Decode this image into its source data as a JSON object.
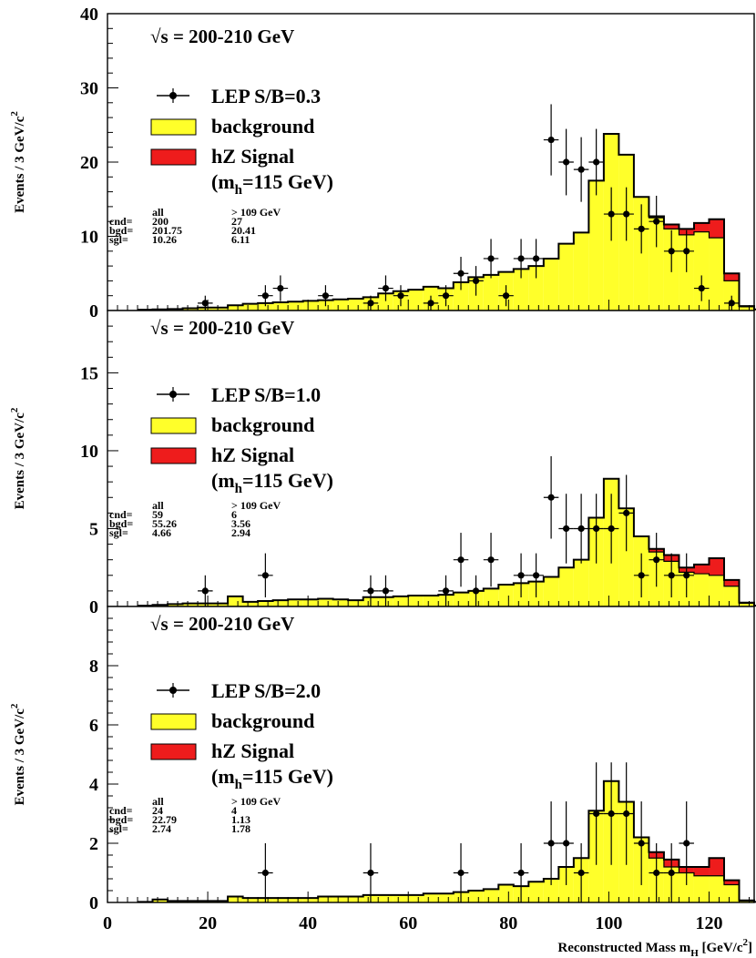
{
  "chart_data": {
    "type": "bar",
    "xlabel": "Reconstructed Mass m",
    "xlabel_sub": "H",
    "xlabel_unit": " [GeV/c",
    "xlabel_sup": "2",
    "xlabel_end": "]",
    "xlim": [
      0,
      129
    ],
    "x_ticks": [
      0,
      20,
      40,
      60,
      80,
      100,
      120
    ],
    "bin_width": 3,
    "bin_start": 6,
    "colors": {
      "background": "#ffff2a",
      "signal": "#ee1c1c",
      "line": "#000000"
    },
    "panels": [
      {
        "ylabel": "Events / 3 GeV/c",
        "ylabel_sup": "2",
        "ylim": [
          0,
          40
        ],
        "y_ticks": [
          0,
          10,
          20,
          30,
          40
        ],
        "energy": "= 200-210 GeV",
        "energy_sqrt": "√s",
        "legend": {
          "data": "LEP S/B=0.3",
          "background": "background",
          "signal": "hZ Signal",
          "mass_pre": "(m",
          "mass_sub": "h",
          "mass_post": "=115 GeV)"
        },
        "stats": {
          "head": [
            "all",
            "> 109 GeV"
          ],
          "rows": [
            [
              "cnd=",
              "200",
              "27"
            ],
            [
              "bgd=",
              "201.75",
              "20.41"
            ],
            [
              "sgl=",
              "10.26",
              "6.11"
            ]
          ]
        },
        "background": [
          0.1,
          0.15,
          0.2,
          0.3,
          0.4,
          0.4,
          0.7,
          0.9,
          1.0,
          1.1,
          1.2,
          1.3,
          1.4,
          1.5,
          1.6,
          1.8,
          2.3,
          2.6,
          2.8,
          3.2,
          3.0,
          3.8,
          4.5,
          4.8,
          5.2,
          5.6,
          6.0,
          7.0,
          9.0,
          10.5,
          17.5,
          23.8,
          21.0,
          15.3,
          12.5,
          11.0,
          10.2,
          10.6,
          9.8,
          4.0,
          0.5,
          0.15,
          0.1,
          0.1
        ],
        "signal": [
          0,
          0,
          0,
          0,
          0,
          0,
          0,
          0,
          0,
          0,
          0,
          0,
          0,
          0,
          0,
          0,
          0,
          0,
          0,
          0,
          0,
          0,
          0,
          0,
          0,
          0,
          0,
          0,
          0,
          0,
          0,
          0,
          0,
          0,
          0.2,
          0.6,
          0.8,
          1.2,
          2.5,
          1.0,
          0.1,
          0,
          0,
          0
        ],
        "points": [
          {
            "x": 19.5,
            "y": 1
          },
          {
            "x": 31.5,
            "y": 2
          },
          {
            "x": 34.5,
            "y": 3
          },
          {
            "x": 43.5,
            "y": 2
          },
          {
            "x": 52.5,
            "y": 1
          },
          {
            "x": 55.5,
            "y": 3
          },
          {
            "x": 58.5,
            "y": 2
          },
          {
            "x": 64.5,
            "y": 1
          },
          {
            "x": 67.5,
            "y": 2
          },
          {
            "x": 70.5,
            "y": 5
          },
          {
            "x": 73.5,
            "y": 4
          },
          {
            "x": 76.5,
            "y": 7
          },
          {
            "x": 79.5,
            "y": 2
          },
          {
            "x": 82.5,
            "y": 7
          },
          {
            "x": 85.5,
            "y": 7
          },
          {
            "x": 88.5,
            "y": 23
          },
          {
            "x": 91.5,
            "y": 20
          },
          {
            "x": 94.5,
            "y": 19
          },
          {
            "x": 97.5,
            "y": 20
          },
          {
            "x": 100.5,
            "y": 13
          },
          {
            "x": 103.5,
            "y": 13
          },
          {
            "x": 106.5,
            "y": 11
          },
          {
            "x": 109.5,
            "y": 12
          },
          {
            "x": 112.5,
            "y": 8
          },
          {
            "x": 115.5,
            "y": 8
          },
          {
            "x": 118.5,
            "y": 3
          },
          {
            "x": 124.5,
            "y": 1
          }
        ]
      },
      {
        "ylabel": "Events / 3 GeV/c",
        "ylabel_sup": "2",
        "ylim": [
          0,
          19
        ],
        "y_ticks": [
          0,
          5,
          10,
          15
        ],
        "energy": "= 200-210 GeV",
        "energy_sqrt": "√s",
        "legend": {
          "data": "LEP S/B=1.0",
          "background": "background",
          "signal": "hZ Signal",
          "mass_pre": "(m",
          "mass_sub": "h",
          "mass_post": "=115 GeV)"
        },
        "stats": {
          "head": [
            "all",
            "> 109 GeV"
          ],
          "rows": [
            [
              "cnd=",
              "59",
              "6"
            ],
            [
              "bgd=",
              "55.26",
              "3.56"
            ],
            [
              "sgl=",
              "4.66",
              "2.94"
            ]
          ]
        },
        "background": [
          0.05,
          0.1,
          0.15,
          0.2,
          0.2,
          0.2,
          0.65,
          0.3,
          0.35,
          0.4,
          0.45,
          0.45,
          0.5,
          0.45,
          0.4,
          0.6,
          0.6,
          0.65,
          0.7,
          0.7,
          0.75,
          0.9,
          1.0,
          1.15,
          1.4,
          1.5,
          1.6,
          1.9,
          2.5,
          3.0,
          5.7,
          8.2,
          6.3,
          4.5,
          3.5,
          2.9,
          2.2,
          2.1,
          2.0,
          1.3,
          0.2,
          0.05,
          0.05,
          0.05
        ],
        "signal": [
          0,
          0,
          0,
          0,
          0,
          0,
          0,
          0,
          0,
          0,
          0,
          0,
          0,
          0,
          0,
          0,
          0,
          0,
          0,
          0,
          0,
          0,
          0,
          0,
          0,
          0,
          0,
          0,
          0,
          0,
          0,
          0,
          0,
          0,
          0.2,
          0.4,
          0.3,
          0.6,
          1.1,
          0.4,
          0.05,
          0,
          0,
          0
        ],
        "points": [
          {
            "x": 19.5,
            "y": 1
          },
          {
            "x": 31.5,
            "y": 2
          },
          {
            "x": 52.5,
            "y": 1
          },
          {
            "x": 55.5,
            "y": 1
          },
          {
            "x": 67.5,
            "y": 1
          },
          {
            "x": 70.5,
            "y": 3
          },
          {
            "x": 73.5,
            "y": 1
          },
          {
            "x": 76.5,
            "y": 3
          },
          {
            "x": 82.5,
            "y": 2
          },
          {
            "x": 85.5,
            "y": 2
          },
          {
            "x": 88.5,
            "y": 7
          },
          {
            "x": 91.5,
            "y": 5
          },
          {
            "x": 94.5,
            "y": 5
          },
          {
            "x": 97.5,
            "y": 5
          },
          {
            "x": 100.5,
            "y": 5
          },
          {
            "x": 103.5,
            "y": 6
          },
          {
            "x": 106.5,
            "y": 2
          },
          {
            "x": 109.5,
            "y": 3
          },
          {
            "x": 112.5,
            "y": 2
          },
          {
            "x": 115.5,
            "y": 2
          }
        ]
      },
      {
        "ylabel": "Events / 3 GeV/c",
        "ylabel_sup": "2",
        "ylim": [
          0,
          10
        ],
        "y_ticks": [
          0,
          2,
          4,
          6,
          8
        ],
        "energy": "= 200-210 GeV",
        "energy_sqrt": "√s",
        "legend": {
          "data": "LEP S/B=2.0",
          "background": "background",
          "signal": "hZ Signal",
          "mass_pre": "(m",
          "mass_sub": "h",
          "mass_post": "=115 GeV)"
        },
        "stats": {
          "head": [
            "all",
            "> 109 GeV"
          ],
          "rows": [
            [
              "cnd=",
              "24",
              "4"
            ],
            [
              "bgd=",
              "22.79",
              "1.13"
            ],
            [
              "sgl=",
              "2.74",
              "1.78"
            ]
          ]
        },
        "background": [
          0.02,
          0.1,
          0.05,
          0.05,
          0.05,
          0.05,
          0.2,
          0.15,
          0.15,
          0.15,
          0.15,
          0.15,
          0.2,
          0.2,
          0.2,
          0.25,
          0.25,
          0.25,
          0.25,
          0.3,
          0.3,
          0.35,
          0.4,
          0.45,
          0.6,
          0.55,
          0.7,
          0.8,
          1.2,
          1.5,
          3.1,
          4.1,
          3.4,
          2.2,
          1.5,
          1.2,
          1.0,
          0.9,
          0.9,
          0.6,
          0.05,
          0.02,
          0.02,
          0.02
        ],
        "signal": [
          0,
          0,
          0,
          0,
          0,
          0,
          0,
          0,
          0,
          0,
          0,
          0,
          0,
          0,
          0,
          0,
          0,
          0,
          0,
          0,
          0,
          0,
          0,
          0,
          0,
          0,
          0,
          0,
          0,
          0,
          0,
          0,
          0,
          0,
          0.2,
          0.25,
          0.2,
          0.3,
          0.6,
          0.15,
          0.02,
          0,
          0,
          0
        ],
        "points": [
          {
            "x": 31.5,
            "y": 1
          },
          {
            "x": 52.5,
            "y": 1
          },
          {
            "x": 70.5,
            "y": 1
          },
          {
            "x": 82.5,
            "y": 1
          },
          {
            "x": 88.5,
            "y": 2
          },
          {
            "x": 91.5,
            "y": 2
          },
          {
            "x": 94.5,
            "y": 1
          },
          {
            "x": 97.5,
            "y": 3
          },
          {
            "x": 100.5,
            "y": 3
          },
          {
            "x": 103.5,
            "y": 3
          },
          {
            "x": 106.5,
            "y": 2
          },
          {
            "x": 109.5,
            "y": 1
          },
          {
            "x": 112.5,
            "y": 1
          },
          {
            "x": 115.5,
            "y": 2
          }
        ]
      }
    ]
  }
}
